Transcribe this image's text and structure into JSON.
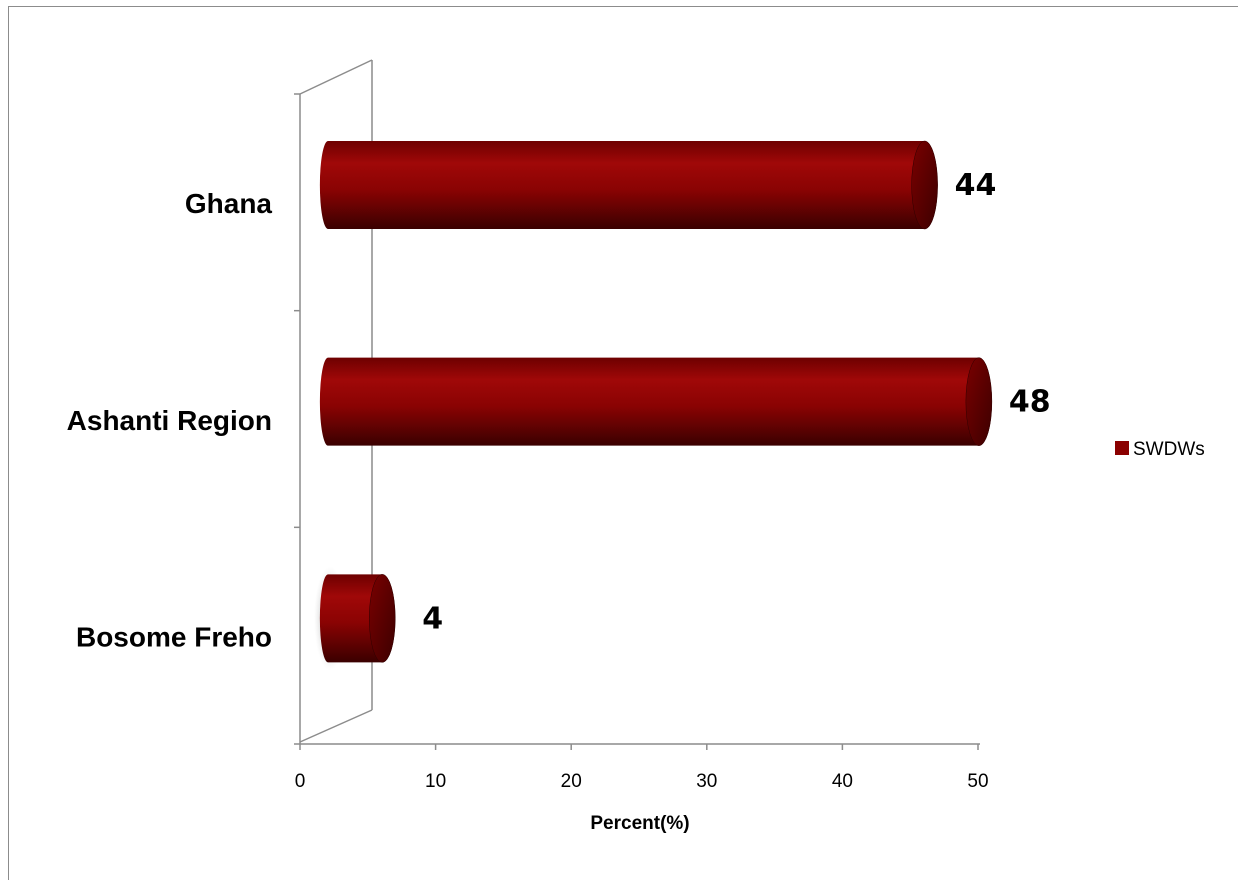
{
  "chart_data": {
    "type": "bar",
    "orientation": "horizontal",
    "style": "3d-cylinder",
    "categories": [
      "Ghana",
      "Ashanti Region",
      "Bosome Freho"
    ],
    "series": [
      {
        "name": "SWDWs",
        "values": [
          44,
          48,
          4
        ],
        "color": "#8b0000"
      }
    ],
    "data_labels": [
      "44",
      "48",
      "4"
    ],
    "xlabel": "Percent(%)",
    "ylabel": "",
    "xlim": [
      0,
      50
    ],
    "xticks": [
      0,
      10,
      20,
      30,
      40,
      50
    ],
    "grid": false,
    "legend_position": "right"
  }
}
